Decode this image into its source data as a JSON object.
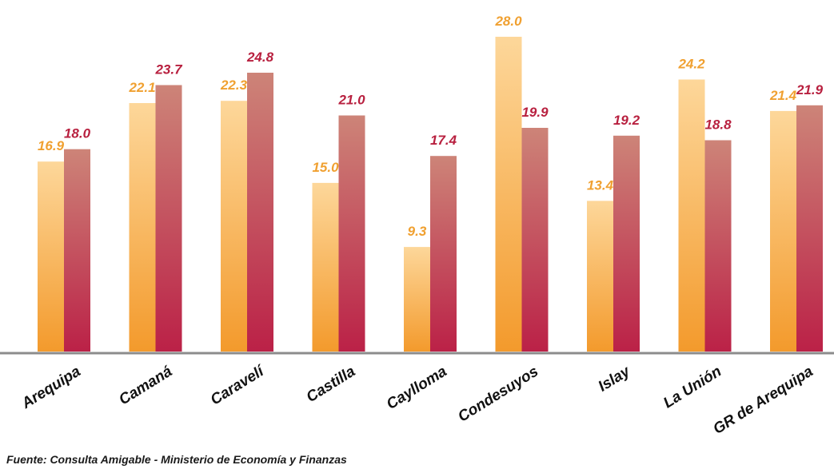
{
  "chart_data": {
    "type": "bar",
    "categories": [
      "Arequipa",
      "Camaná",
      "Caravelí",
      "Castilla",
      "Caylloma",
      "Condesuyos",
      "Islay",
      "La Unión",
      "GR de Arequipa"
    ],
    "series": [
      {
        "values": [
          16.9,
          22.1,
          22.3,
          15.0,
          9.3,
          28.0,
          13.4,
          24.2,
          21.4
        ],
        "color": "#f0a030"
      },
      {
        "values": [
          18.0,
          23.7,
          24.8,
          21.0,
          17.4,
          19.9,
          19.2,
          18.8,
          21.9
        ],
        "color": "#b8203f"
      }
    ],
    "ylim": [
      0,
      30
    ],
    "grid": false,
    "value_label_colors": [
      "#f0a030",
      "#b8203f"
    ]
  },
  "source_note": "Fuente: Consulta Amigable - Ministerio de Economía y Finanzas"
}
